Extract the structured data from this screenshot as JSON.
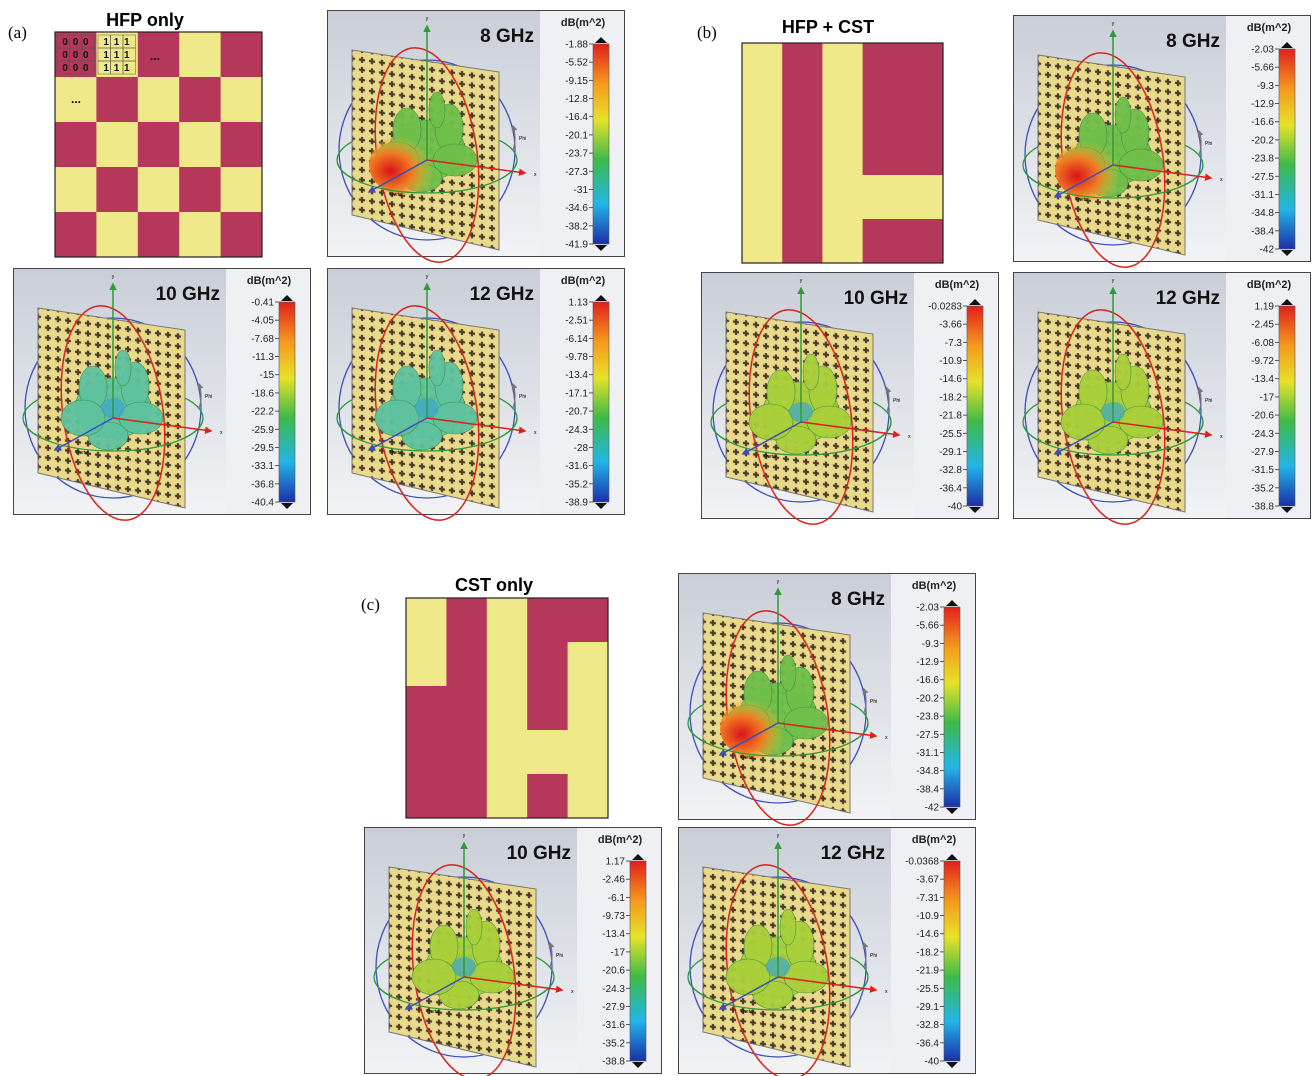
{
  "panels": [
    {
      "label": "(a)",
      "title": "HFP only",
      "matrix_rows": [
        [
          "0 0 0",
          "1 1 1"
        ],
        [
          "0 0 0",
          "1 1 1"
        ],
        [
          "0 0 0",
          "1 1 1"
        ]
      ],
      "ellipsis": [
        "...",
        "..."
      ],
      "plots": [
        {
          "frequency": "8 GHz",
          "unit": "dB(m^2)",
          "colorbar_labels": [
            -1.88,
            -5.52,
            -9.15,
            -12.8,
            -16.4,
            -20.1,
            -23.7,
            -27.3,
            -31,
            -34.6,
            -38.2,
            -41.9
          ]
        },
        {
          "frequency": "10 GHz",
          "unit": "dB(m^2)",
          "colorbar_labels": [
            -0.41,
            -4.05,
            -7.68,
            -11.3,
            -15,
            -18.6,
            -22.2,
            -25.9,
            -29.5,
            -33.1,
            -36.8,
            -40.4
          ]
        },
        {
          "frequency": "12 GHz",
          "unit": "dB(m^2)",
          "colorbar_labels": [
            1.13,
            -2.51,
            -6.14,
            -9.78,
            -13.4,
            -17.1,
            -20.7,
            -24.3,
            -28,
            -31.6,
            -35.2,
            -38.9
          ]
        }
      ]
    },
    {
      "label": "(b)",
      "title": "HFP + CST",
      "plots": [
        {
          "frequency": "8 GHz",
          "unit": "dB(m^2)",
          "colorbar_labels": [
            -2.03,
            -5.66,
            -9.3,
            -12.9,
            -16.6,
            -20.2,
            -23.8,
            -27.5,
            -31.1,
            -34.8,
            -38.4,
            -42
          ]
        },
        {
          "frequency": "10 GHz",
          "unit": "dB(m^2)",
          "colorbar_labels": [
            -0.0283,
            -3.66,
            -7.3,
            -10.9,
            -14.6,
            -18.2,
            -21.8,
            -25.5,
            -29.1,
            -32.8,
            -36.4,
            -40
          ]
        },
        {
          "frequency": "12 GHz",
          "unit": "dB(m^2)",
          "colorbar_labels": [
            1.19,
            -2.45,
            -6.08,
            -9.72,
            -13.4,
            -17,
            -20.6,
            -24.3,
            -27.9,
            -31.5,
            -35.2,
            -38.8
          ]
        }
      ]
    },
    {
      "label": "(c)",
      "title": "CST only",
      "plots": [
        {
          "frequency": "8 GHz",
          "unit": "dB(m^2)",
          "colorbar_labels": [
            -2.03,
            -5.66,
            -9.3,
            -12.9,
            -16.6,
            -20.2,
            -23.8,
            -27.5,
            -31.1,
            -34.8,
            -38.4,
            -42
          ]
        },
        {
          "frequency": "10 GHz",
          "unit": "dB(m^2)",
          "colorbar_labels": [
            1.17,
            -2.46,
            -6.1,
            -9.73,
            -13.4,
            -17,
            -20.6,
            -24.3,
            -27.9,
            -31.6,
            -35.2,
            -38.8
          ]
        },
        {
          "frequency": "12 GHz",
          "unit": "dB(m^2)",
          "colorbar_labels": [
            -0.0368,
            -3.67,
            -7.31,
            -10.9,
            -14.6,
            -18.2,
            -21.9,
            -25.5,
            -29.1,
            -32.8,
            -36.4,
            -40
          ]
        }
      ]
    }
  ],
  "axis_labels": {
    "y": "y",
    "x": "x",
    "phi": "Phi",
    "theta": "Theta"
  }
}
